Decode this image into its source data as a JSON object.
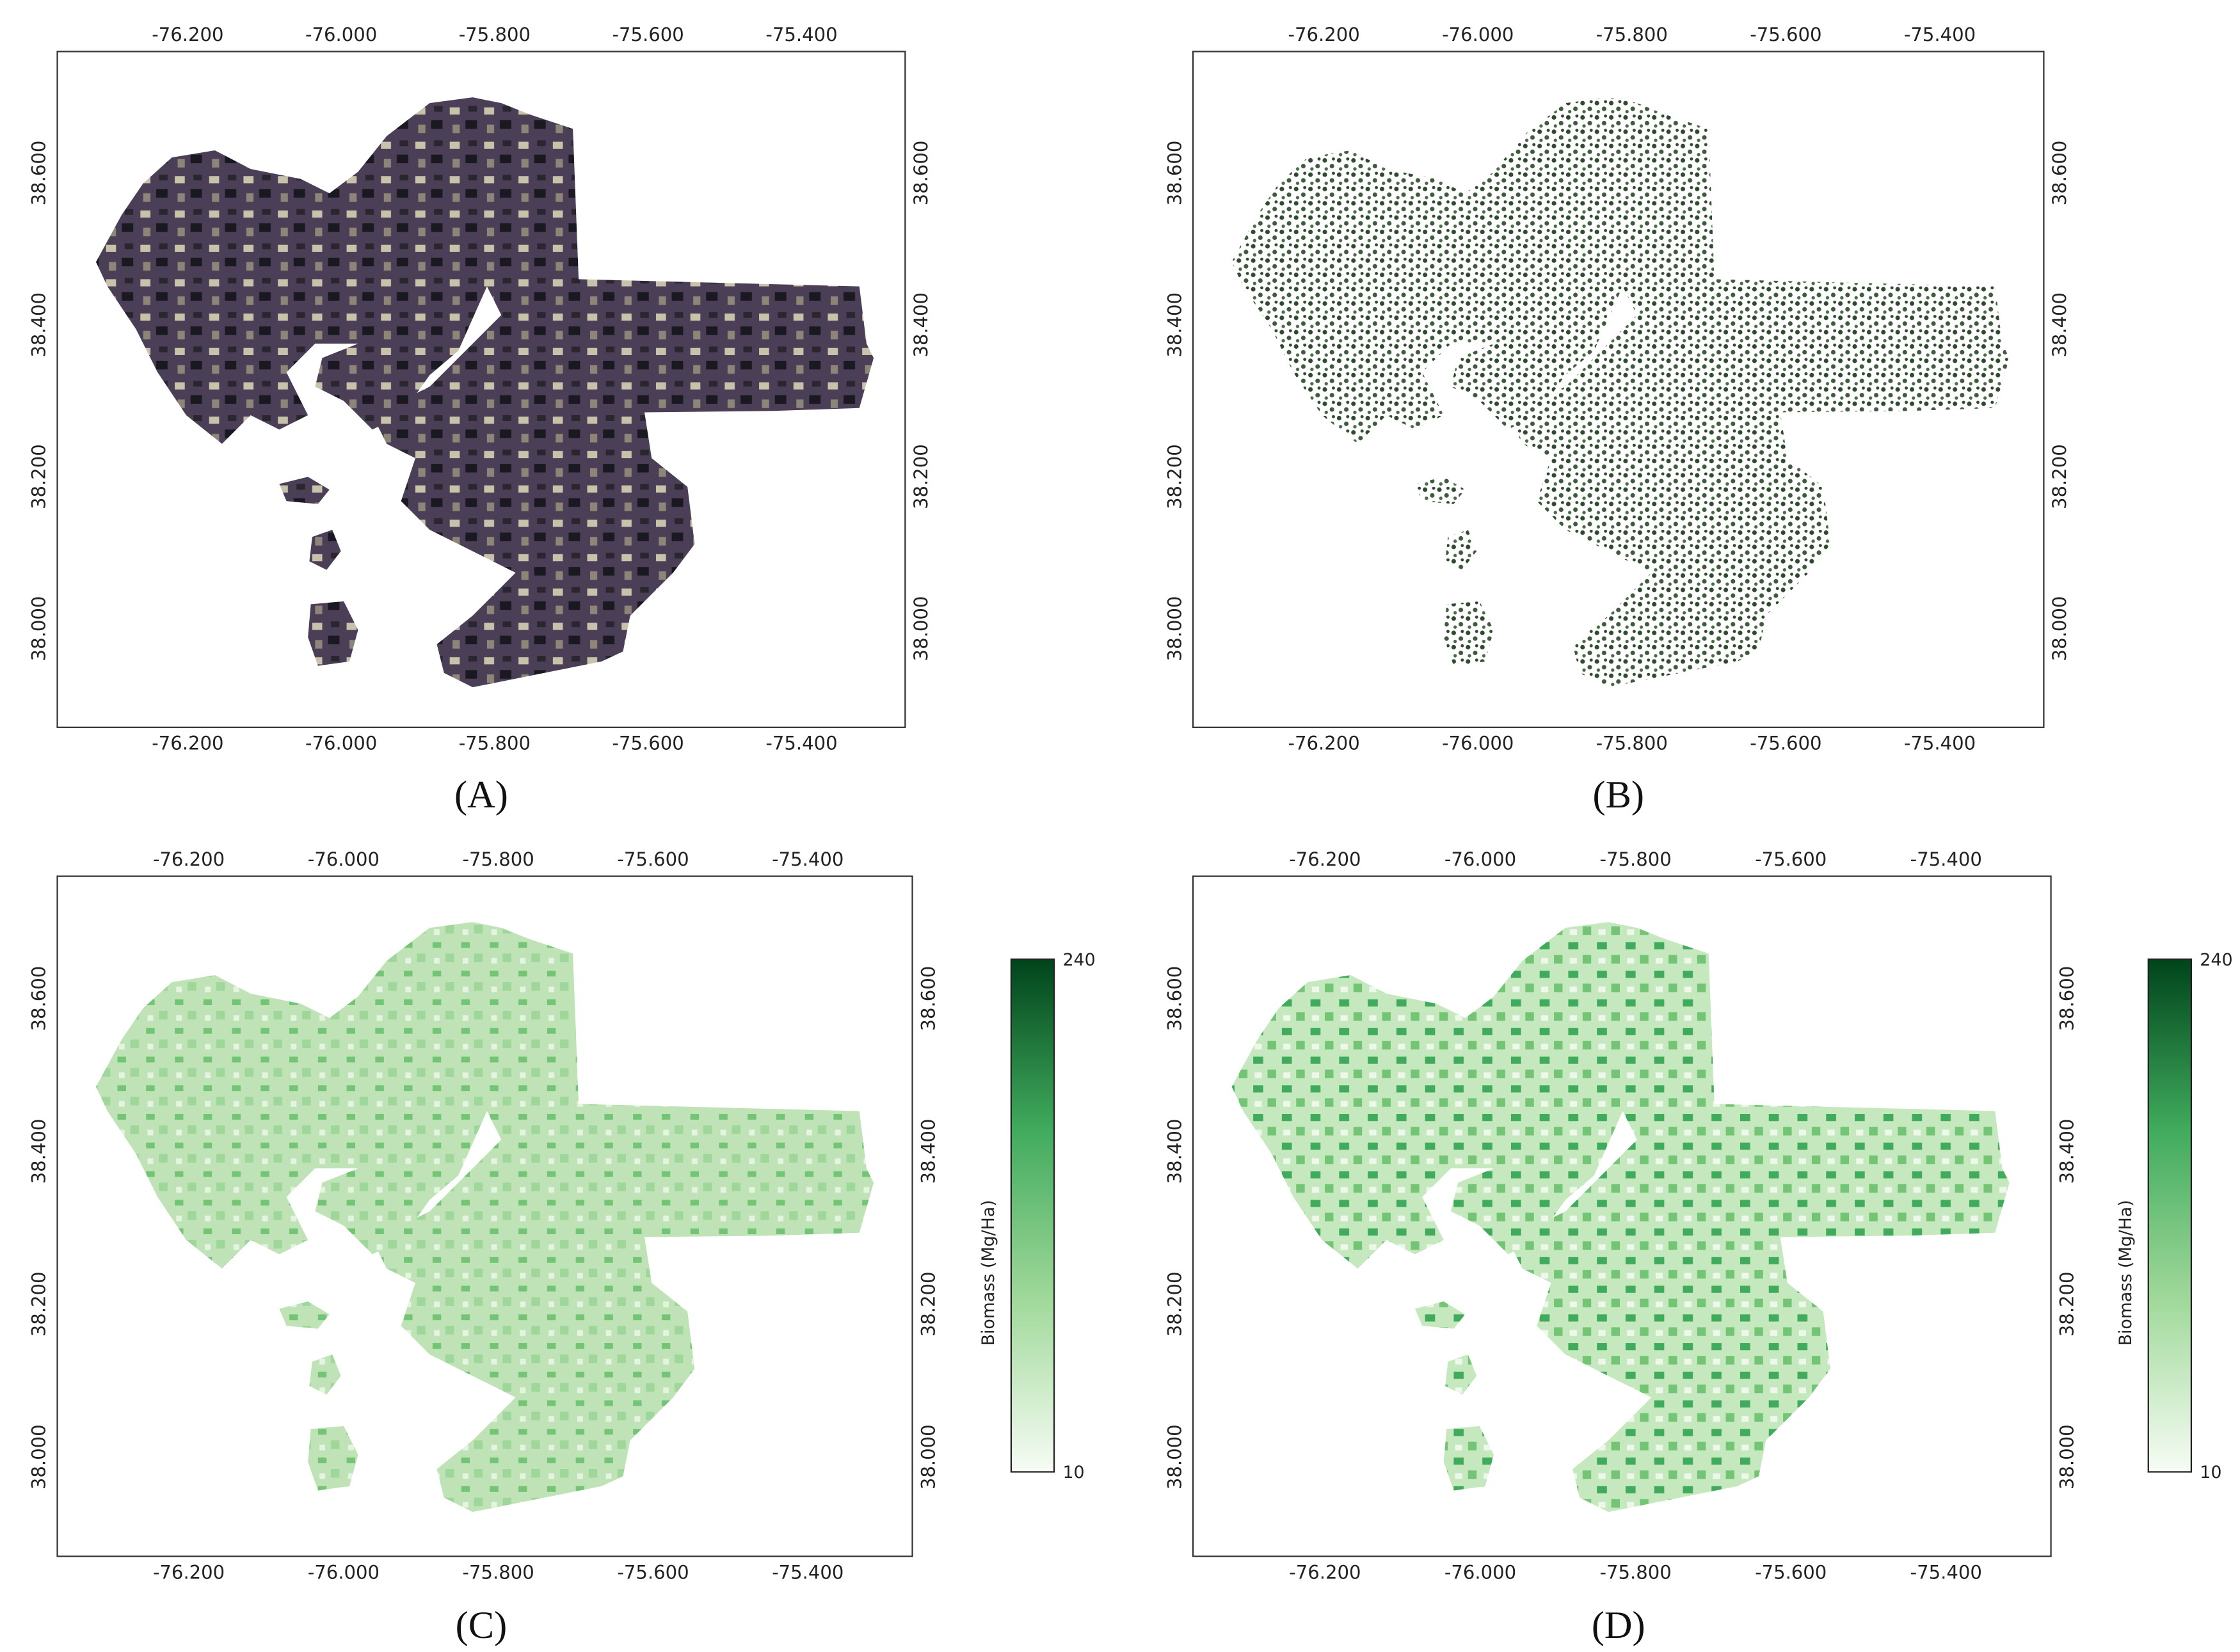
{
  "panels": [
    {
      "label": "(A)",
      "xlim": [
        -76.37,
        -75.265
      ],
      "ylim": [
        37.87,
        38.76
      ],
      "xticks": [
        {
          "value": -76.2,
          "label": "-76.200"
        },
        {
          "value": -76.0,
          "label": "-76.000"
        },
        {
          "value": -75.8,
          "label": "-75.800"
        },
        {
          "value": -75.6,
          "label": "-75.600"
        },
        {
          "value": -75.4,
          "label": "-75.400"
        }
      ],
      "yticks": [
        {
          "value": 38.0,
          "label": "38.000"
        },
        {
          "value": 38.2,
          "label": "38.200"
        },
        {
          "value": 38.4,
          "label": "38.400"
        },
        {
          "value": 38.6,
          "label": "38.600"
        }
      ]
    },
    {
      "label": "(B)",
      "xlim": [
        -76.37,
        -75.265
      ],
      "ylim": [
        37.87,
        38.76
      ],
      "xticks": [
        {
          "value": -76.2,
          "label": "-76.200"
        },
        {
          "value": -76.0,
          "label": "-76.000"
        },
        {
          "value": -75.8,
          "label": "-75.800"
        },
        {
          "value": -75.6,
          "label": "-75.600"
        },
        {
          "value": -75.4,
          "label": "-75.400"
        }
      ],
      "yticks": [
        {
          "value": 38.0,
          "label": "38.000"
        },
        {
          "value": 38.2,
          "label": "38.200"
        },
        {
          "value": 38.4,
          "label": "38.400"
        },
        {
          "value": 38.6,
          "label": "38.600"
        }
      ]
    },
    {
      "label": "(C)",
      "xlim": [
        -76.37,
        -75.265
      ],
      "ylim": [
        37.87,
        38.76
      ],
      "xticks": [
        {
          "value": -76.2,
          "label": "-76.200"
        },
        {
          "value": -76.0,
          "label": "-76.000"
        },
        {
          "value": -75.8,
          "label": "-75.800"
        },
        {
          "value": -75.6,
          "label": "-75.600"
        },
        {
          "value": -75.4,
          "label": "-75.400"
        }
      ],
      "yticks": [
        {
          "value": 38.0,
          "label": "38.000"
        },
        {
          "value": 38.2,
          "label": "38.200"
        },
        {
          "value": 38.4,
          "label": "38.400"
        },
        {
          "value": 38.6,
          "label": "38.600"
        }
      ],
      "colorbar": {
        "label": "Biomass (Mg/Ha)",
        "min": 10,
        "max": 240,
        "colors": [
          "#f7fcf5",
          "#a1d99b",
          "#41ab5d",
          "#00441b"
        ]
      }
    },
    {
      "label": "(D)",
      "xlim": [
        -76.37,
        -75.265
      ],
      "ylim": [
        37.87,
        38.76
      ],
      "xticks": [
        {
          "value": -76.2,
          "label": "-76.200"
        },
        {
          "value": -76.0,
          "label": "-76.000"
        },
        {
          "value": -75.8,
          "label": "-75.800"
        },
        {
          "value": -75.6,
          "label": "-75.600"
        },
        {
          "value": -75.4,
          "label": "-75.400"
        }
      ],
      "yticks": [
        {
          "value": 38.0,
          "label": "38.000"
        },
        {
          "value": 38.2,
          "label": "38.200"
        },
        {
          "value": 38.4,
          "label": "38.400"
        },
        {
          "value": 38.6,
          "label": "38.600"
        }
      ],
      "colorbar": {
        "label": "Biomass (Mg/Ha)",
        "min": 10,
        "max": 240,
        "colors": [
          "#f7fcf5",
          "#a1d99b",
          "#41ab5d",
          "#00441b"
        ]
      }
    }
  ]
}
